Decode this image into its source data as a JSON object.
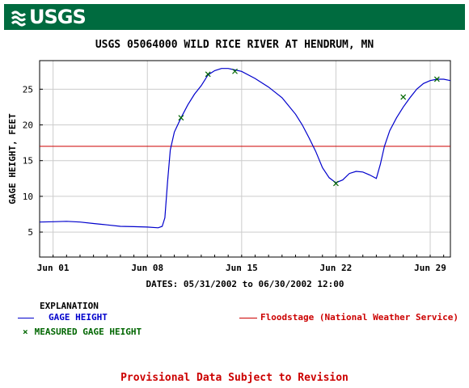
{
  "header": {
    "logo_text": "USGS",
    "brand_color": "#006b3f"
  },
  "chart_data": {
    "type": "line",
    "title": "USGS 05064000 WILD RICE RIVER AT HENDRUM, MN",
    "ylabel": "GAGE HEIGHT, FEET",
    "xlabel": "DATES: 05/31/2002 to 06/30/2002 12:00",
    "x_unit": "day of June 2002 (0 = May 31)",
    "xlim": [
      0,
      30.5
    ],
    "ylim": [
      1.5,
      29
    ],
    "x_ticks": [
      {
        "x": 1,
        "label": "Jun 01"
      },
      {
        "x": 8,
        "label": "Jun 08"
      },
      {
        "x": 15,
        "label": "Jun 15"
      },
      {
        "x": 22,
        "label": "Jun 22"
      },
      {
        "x": 29,
        "label": "Jun 29"
      }
    ],
    "y_ticks": [
      5,
      10,
      15,
      20,
      25
    ],
    "grid": true,
    "series": [
      {
        "name": "GAGE HEIGHT",
        "color": "#0000cc",
        "points": [
          [
            0,
            6.4
          ],
          [
            1,
            6.45
          ],
          [
            2,
            6.5
          ],
          [
            3,
            6.4
          ],
          [
            4,
            6.2
          ],
          [
            5,
            6.0
          ],
          [
            6,
            5.8
          ],
          [
            7,
            5.75
          ],
          [
            8,
            5.7
          ],
          [
            8.8,
            5.6
          ],
          [
            9.1,
            5.8
          ],
          [
            9.3,
            7.0
          ],
          [
            9.5,
            12.0
          ],
          [
            9.7,
            16.5
          ],
          [
            10,
            19.0
          ],
          [
            10.5,
            21.0
          ],
          [
            11,
            22.8
          ],
          [
            11.5,
            24.3
          ],
          [
            12,
            25.5
          ],
          [
            12.5,
            27.0
          ],
          [
            13,
            27.6
          ],
          [
            13.5,
            27.9
          ],
          [
            14,
            27.9
          ],
          [
            14.5,
            27.7
          ],
          [
            15,
            27.5
          ],
          [
            16,
            26.5
          ],
          [
            17,
            25.3
          ],
          [
            18,
            23.8
          ],
          [
            19,
            21.5
          ],
          [
            19.5,
            20.0
          ],
          [
            20,
            18.2
          ],
          [
            20.5,
            16.3
          ],
          [
            21,
            14.0
          ],
          [
            21.5,
            12.6
          ],
          [
            22,
            11.9
          ],
          [
            22.5,
            12.3
          ],
          [
            23,
            13.2
          ],
          [
            23.5,
            13.5
          ],
          [
            24,
            13.4
          ],
          [
            24.5,
            13.0
          ],
          [
            25,
            12.5
          ],
          [
            25.3,
            14.5
          ],
          [
            25.6,
            17.0
          ],
          [
            26,
            19.2
          ],
          [
            26.5,
            21.0
          ],
          [
            27,
            22.5
          ],
          [
            27.5,
            23.8
          ],
          [
            28,
            25.0
          ],
          [
            28.5,
            25.8
          ],
          [
            29,
            26.2
          ],
          [
            29.5,
            26.4
          ],
          [
            30,
            26.4
          ],
          [
            30.5,
            26.2
          ],
          [
            31,
            26.0
          ],
          [
            31.5,
            25.6
          ],
          [
            32,
            25.0
          ]
        ]
      },
      {
        "name": "MEASURED GAGE HEIGHT",
        "color": "#006600",
        "marker": "x",
        "points": [
          [
            10.5,
            21.0
          ],
          [
            12.5,
            27.1
          ],
          [
            14.5,
            27.5
          ],
          [
            22,
            11.8
          ],
          [
            27,
            23.9
          ],
          [
            29.5,
            26.4
          ]
        ]
      }
    ],
    "threshold": {
      "name": "Floodstage (National Weather Service)",
      "value": 17,
      "color": "#cc0000"
    }
  },
  "legend": {
    "explanation": "EXPLANATION",
    "gage_label": "GAGE HEIGHT",
    "measured_label": "MEASURED GAGE HEIGHT",
    "flood_label": "Floodstage (National Weather Service)"
  },
  "footer": {
    "provisional": "Provisional Data Subject to Revision"
  }
}
